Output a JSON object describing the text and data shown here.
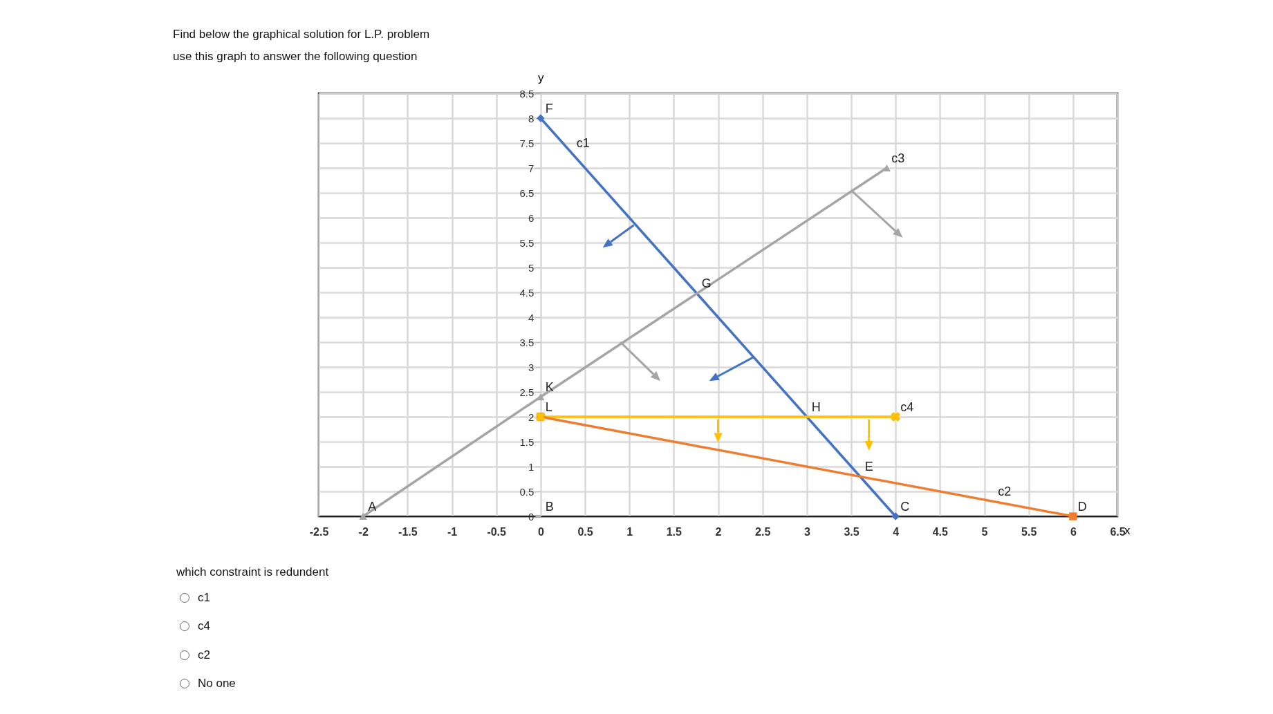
{
  "chart_data": {
    "type": "line",
    "title": "Find below the graphical solution for L.P. problem",
    "subtitle": "use this graph to answer the following question",
    "xlabel": "x",
    "ylabel": "y",
    "series": [
      {
        "color": "#4472c4",
        "marker": "diamond",
        "x": [
          0,
          4
        ],
        "values": [
          8,
          0
        ]
      },
      {
        "color": "#a5a5a5",
        "marker": "triangle",
        "x": [
          -2,
          0,
          3.9
        ],
        "values": [
          0,
          2.4,
          7
        ]
      },
      {
        "color": "#ffc000",
        "marker": "cross",
        "x": [
          0,
          4
        ],
        "values": [
          2,
          2
        ]
      },
      {
        "color": "#ed7d31",
        "marker": "square",
        "x": [
          0,
          6
        ],
        "values": [
          2,
          0
        ]
      }
    ],
    "xlim": [
      -2.5,
      6.5
    ],
    "xticks": [
      -2.5,
      -2,
      -1.5,
      -1,
      -0.5,
      0,
      0.5,
      1,
      1.5,
      2,
      2.5,
      3,
      3.5,
      4,
      4.5,
      5,
      5.5,
      6,
      6.5
    ],
    "ylim": [
      0,
      8.5
    ],
    "yticks": [
      0,
      0.5,
      1,
      1.5,
      2,
      2.5,
      3,
      3.5,
      4,
      4.5,
      5,
      5.5,
      6,
      6.5,
      7,
      7.5,
      8,
      8.5
    ],
    "grid": true,
    "annotations": [
      {
        "text": "F",
        "x": 0,
        "y": 8
      },
      {
        "text": "c1",
        "x": 0.35,
        "y": 7.3
      },
      {
        "text": "c3",
        "x": 3.9,
        "y": 7
      },
      {
        "text": "c4",
        "x": 4,
        "y": 2
      },
      {
        "text": "c2",
        "x": 5.1,
        "y": 0.3
      },
      {
        "text": "G",
        "x": 1.76,
        "y": 4.48
      },
      {
        "text": "K",
        "x": 0,
        "y": 2.4
      },
      {
        "text": "H",
        "x": 3,
        "y": 2
      },
      {
        "text": "L",
        "x": 0,
        "y": 2
      },
      {
        "text": "E",
        "x": 3.6,
        "y": 0.8
      },
      {
        "text": "D",
        "x": 6,
        "y": 0
      },
      {
        "text": "C",
        "x": 4,
        "y": 0
      },
      {
        "text": "A",
        "x": -2,
        "y": 0
      },
      "B",
      "which constraint is redundent",
      "c1",
      "c4",
      "c2",
      "No one"
    ]
  }
}
